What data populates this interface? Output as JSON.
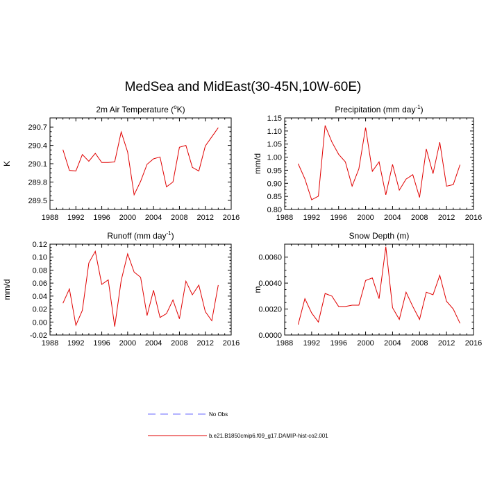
{
  "title": "MedSea and MidEast(30-45N,10W-60E)",
  "legend": {
    "placement": "bottom-center",
    "entries": [
      {
        "label": "No Obs",
        "style": "dashed",
        "color": "#6666ff"
      },
      {
        "label": "b.e21.B1850cmip6.f09_g17.DAMIP-hist-co2.001",
        "style": "solid",
        "color": "#e00000"
      }
    ]
  },
  "chart_data": [
    {
      "type": "line",
      "title": "2m Air Temperature (",
      "title_sup": "o",
      "title_suffix": "K)",
      "title_tail": "",
      "ylabel": "K",
      "xlim": [
        1988,
        2016
      ],
      "ylim": [
        289.35,
        290.85
      ],
      "xticks": [
        1988,
        1992,
        1996,
        2000,
        2004,
        2008,
        2012,
        2016
      ],
      "yticks": [
        289.5,
        289.8,
        290.1,
        290.4,
        290.7
      ],
      "ytick_labels": [
        "289.5",
        "289.8",
        "290.1",
        "290.4",
        "290.7"
      ],
      "x": [
        1990,
        1991,
        1992,
        1993,
        1994,
        1995,
        1996,
        1997,
        1998,
        1999,
        2000,
        2001,
        2002,
        2003,
        2004,
        2005,
        2006,
        2007,
        2008,
        2009,
        2010,
        2011,
        2012,
        2013,
        2014
      ],
      "series": [
        {
          "color": "#e00000",
          "values": [
            290.33,
            289.99,
            289.98,
            290.25,
            290.14,
            290.27,
            290.12,
            290.12,
            290.13,
            290.62,
            290.29,
            289.59,
            289.81,
            290.09,
            290.18,
            290.21,
            289.72,
            289.8,
            290.37,
            290.4,
            290.04,
            289.98,
            290.39,
            290.54,
            290.69
          ]
        }
      ]
    },
    {
      "type": "line",
      "title": "Precipitation (mm day",
      "title_sup": "-1",
      "title_suffix": ")",
      "ylabel": "mm/d",
      "xlim": [
        1988,
        2016
      ],
      "ylim": [
        0.8,
        1.15
      ],
      "xticks": [
        1988,
        1992,
        1996,
        2000,
        2004,
        2008,
        2012,
        2016
      ],
      "yticks": [
        0.8,
        0.85,
        0.9,
        0.95,
        1.0,
        1.05,
        1.1,
        1.15
      ],
      "ytick_labels": [
        "0.80",
        "0.85",
        "0.90",
        "0.95",
        "1.00",
        "1.05",
        "1.10",
        "1.15"
      ],
      "x": [
        1990,
        1991,
        1992,
        1993,
        1994,
        1995,
        1996,
        1997,
        1998,
        1999,
        2000,
        2001,
        2002,
        2003,
        2004,
        2005,
        2006,
        2007,
        2008,
        2009,
        2010,
        2011,
        2012,
        2013,
        2014
      ],
      "series": [
        {
          "color": "#e00000",
          "values": [
            0.975,
            0.917,
            0.837,
            0.851,
            1.121,
            1.058,
            1.011,
            0.982,
            0.889,
            0.955,
            1.113,
            0.946,
            0.982,
            0.856,
            0.972,
            0.874,
            0.916,
            0.933,
            0.846,
            1.031,
            0.937,
            1.057,
            0.889,
            0.895,
            0.971
          ]
        }
      ]
    },
    {
      "type": "line",
      "title": "Runoff (mm day",
      "title_sup": "-1",
      "title_suffix": ")",
      "ylabel": "mm/d",
      "xlim": [
        1988,
        2016
      ],
      "ylim": [
        -0.02,
        0.12
      ],
      "xticks": [
        1988,
        1992,
        1996,
        2000,
        2004,
        2008,
        2012,
        2016
      ],
      "yticks": [
        -0.02,
        0.0,
        0.02,
        0.04,
        0.06,
        0.08,
        0.1,
        0.12
      ],
      "ytick_labels": [
        "-0.02",
        "0.00",
        "0.02",
        "0.04",
        "0.06",
        "0.08",
        "0.10",
        "0.12"
      ],
      "x": [
        1990,
        1991,
        1992,
        1993,
        1994,
        1995,
        1996,
        1997,
        1998,
        1999,
        2000,
        2001,
        2002,
        2003,
        2004,
        2005,
        2006,
        2007,
        2008,
        2009,
        2010,
        2011,
        2012,
        2013,
        2014
      ],
      "series": [
        {
          "color": "#e00000",
          "values": [
            0.029,
            0.051,
            -0.005,
            0.018,
            0.091,
            0.109,
            0.058,
            0.065,
            -0.007,
            0.064,
            0.105,
            0.077,
            0.069,
            0.01,
            0.049,
            0.007,
            0.013,
            0.034,
            0.005,
            0.063,
            0.042,
            0.057,
            0.016,
            0.002,
            0.057
          ]
        }
      ]
    },
    {
      "type": "line",
      "title": "Snow Depth (m)",
      "title_sup": "",
      "title_suffix": "",
      "ylabel": "m",
      "xlim": [
        1988,
        2016
      ],
      "ylim": [
        0.0,
        0.007
      ],
      "xticks": [
        1988,
        1992,
        1996,
        2000,
        2004,
        2008,
        2012,
        2016
      ],
      "yticks": [
        0.0,
        0.002,
        0.004,
        0.006
      ],
      "ytick_labels": [
        "0.0000",
        "0.0020",
        "0.0040",
        "0.0060"
      ],
      "x": [
        1990,
        1991,
        1992,
        1993,
        1994,
        1995,
        1996,
        1997,
        1998,
        1999,
        2000,
        2001,
        2002,
        2003,
        2004,
        2005,
        2006,
        2007,
        2008,
        2009,
        2010,
        2011,
        2012,
        2013,
        2014
      ],
      "series": [
        {
          "color": "#e00000",
          "values": [
            0.0008,
            0.0028,
            0.0017,
            0.001,
            0.0032,
            0.003,
            0.0022,
            0.0022,
            0.0023,
            0.0023,
            0.0042,
            0.0044,
            0.0028,
            0.0068,
            0.0021,
            0.0012,
            0.0033,
            0.0022,
            0.0012,
            0.0033,
            0.0031,
            0.0046,
            0.0026,
            0.002,
            0.0009
          ]
        }
      ]
    }
  ]
}
